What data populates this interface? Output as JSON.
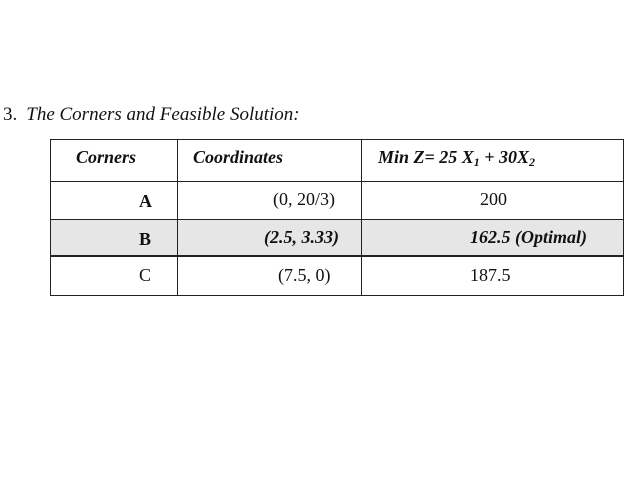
{
  "heading": {
    "number": "3.",
    "text": "The Corners and Feasible Solution:"
  },
  "table": {
    "headers": {
      "corners": "Corners",
      "coordinates": "Coordinates",
      "objective_prefix": "Min Z= 25 X",
      "objective_sub1": "1",
      "objective_mid": " + 30X",
      "objective_sub2": "2"
    },
    "rows": [
      {
        "corner": "A",
        "coordinates": "(0, 20/3)",
        "z": "200"
      },
      {
        "corner": "B",
        "coordinates": "(2.5, 3.33)",
        "z": "162.5 (Optimal)"
      },
      {
        "corner": "C",
        "coordinates": "(7.5, 0)",
        "z": "187.5"
      }
    ],
    "highlight_color": "#e6e6e6"
  }
}
